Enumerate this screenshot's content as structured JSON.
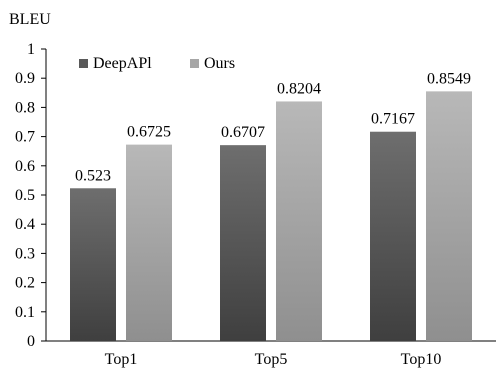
{
  "chart_data": {
    "type": "bar",
    "ylabel": "BLEU",
    "categories": [
      "Top1",
      "Top5",
      "Top10"
    ],
    "ylim": [
      0,
      1
    ],
    "yticks": [
      "0",
      "0.1",
      "0.2",
      "0.3",
      "0.4",
      "0.5",
      "0.6",
      "0.7",
      "0.8",
      "0.9",
      "1"
    ],
    "series": [
      {
        "name": "DeepAPl",
        "values": [
          0.523,
          0.6707,
          0.7167
        ],
        "labels": [
          "0.523",
          "0.6707",
          "0.7167"
        ],
        "color": "#595959"
      },
      {
        "name": "Ours",
        "values": [
          0.6725,
          0.8204,
          0.8549
        ],
        "labels": [
          "0.6725",
          "0.8204",
          "0.8549"
        ],
        "color": "#a6a6a6"
      }
    ],
    "legend_position": "top-left",
    "grid": false
  }
}
